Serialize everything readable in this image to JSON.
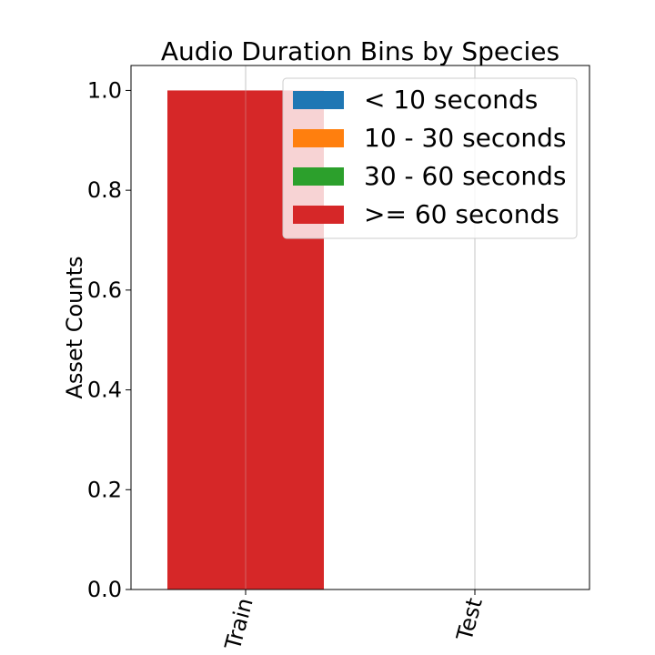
{
  "chart_data": {
    "type": "bar",
    "title": "Audio Duration Bins by Species",
    "xlabel": "",
    "ylabel": "Asset Counts",
    "categories": [
      "Train",
      "Test"
    ],
    "series": [
      {
        "name": "< 10 seconds",
        "values": [
          0,
          0
        ],
        "color": "#1f77b4"
      },
      {
        "name": "10 - 30 seconds",
        "values": [
          0,
          0
        ],
        "color": "#ff7f0e"
      },
      {
        "name": "30 - 60 seconds",
        "values": [
          0,
          0
        ],
        "color": "#2ca02c"
      },
      {
        "name": ">= 60 seconds",
        "values": [
          1,
          0
        ],
        "color": "#d62728"
      }
    ],
    "ylim": [
      0,
      1.05
    ],
    "yticks": [
      "0.0",
      "0.2",
      "0.4",
      "0.6",
      "0.8",
      "1.0"
    ],
    "ytick_values": [
      0,
      0.2,
      0.4,
      0.6,
      0.8,
      1.0
    ],
    "grid": "vertical",
    "legend_placement": "top-right",
    "xtick_rotation": "75 degrees"
  }
}
